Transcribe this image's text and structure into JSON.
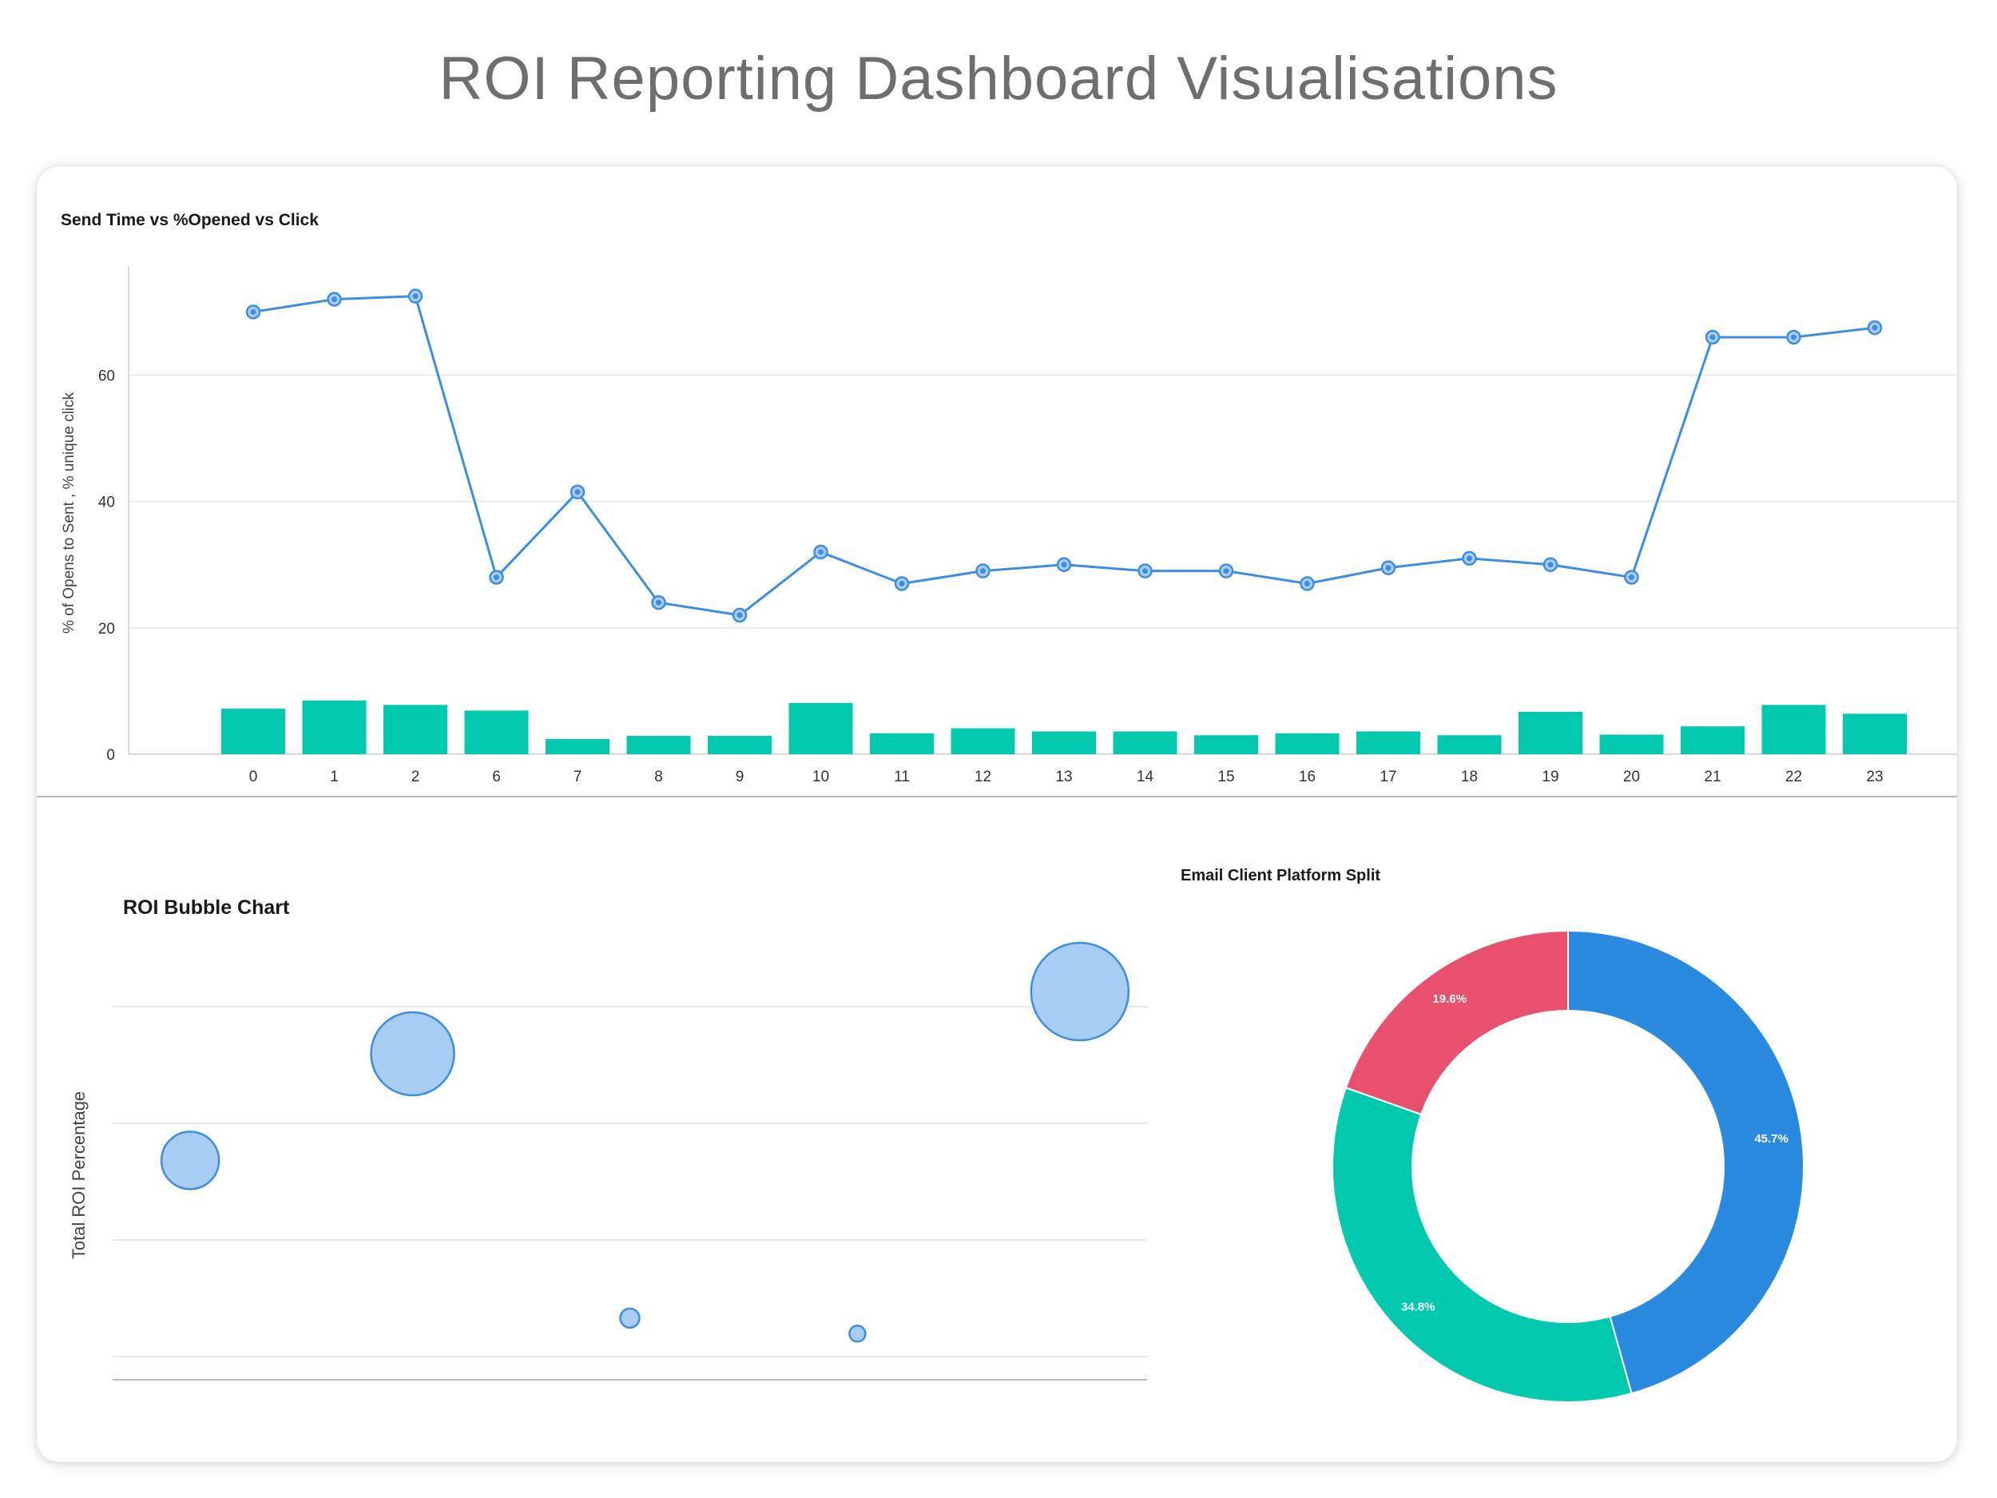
{
  "page": {
    "title": "ROI Reporting Dashboard Visualisations"
  },
  "colors": {
    "line": "#3d8ee0",
    "bar": "#00c9ad",
    "bubble_fill": "#a8cdf2",
    "bubble_stroke": "#3d8ee0",
    "donut_blue": "#2a8ae0",
    "donut_teal": "#00c9ad",
    "donut_red": "#e8506e"
  },
  "chart_data": [
    {
      "type": "bar+line",
      "title": "Send Time vs %Opened vs Click",
      "ylabel": "% of Opens to Sent , % unique click",
      "ylim": [
        0,
        76
      ],
      "yticks": [
        0,
        20,
        40,
        60
      ],
      "categories": [
        "0",
        "1",
        "2",
        "6",
        "7",
        "8",
        "9",
        "10",
        "11",
        "12",
        "13",
        "14",
        "15",
        "16",
        "17",
        "18",
        "19",
        "20",
        "21",
        "22",
        "23"
      ],
      "series": [
        {
          "kind": "line",
          "values": [
            70,
            72,
            72.5,
            28,
            41.5,
            24,
            22,
            32,
            27,
            29,
            30,
            29,
            29,
            27,
            29.5,
            31,
            30,
            28,
            66,
            66,
            67.5
          ]
        },
        {
          "kind": "bar",
          "values": [
            7.2,
            8.5,
            7.8,
            6.9,
            2.4,
            2.9,
            2.9,
            8.1,
            3.3,
            4.1,
            3.6,
            3.6,
            3.0,
            3.3,
            3.6,
            3.0,
            6.7,
            3.1,
            4.4,
            7.8,
            6.4
          ]
        }
      ]
    },
    {
      "type": "scatter",
      "title": "ROI Bubble Chart",
      "ylabel": "Total ROI Percentage",
      "xlim": [
        0,
        100
      ],
      "ylim": [
        0,
        100
      ],
      "points": [
        {
          "x": 7.5,
          "y": 51,
          "size": 36
        },
        {
          "x": 29,
          "y": 75,
          "size": 52
        },
        {
          "x": 50,
          "y": 15.5,
          "size": 12
        },
        {
          "x": 72,
          "y": 12,
          "size": 10
        },
        {
          "x": 93.5,
          "y": 89,
          "size": 61
        }
      ]
    },
    {
      "type": "pie",
      "title": "Email Client Platform Split",
      "slices": [
        {
          "label": "45.7%",
          "value": 45.7,
          "color": "#2a8ae0"
        },
        {
          "label": "34.8%",
          "value": 34.8,
          "color": "#00c9ad"
        },
        {
          "label": "19.6%",
          "value": 19.6,
          "color": "#e8506e"
        }
      ]
    }
  ]
}
